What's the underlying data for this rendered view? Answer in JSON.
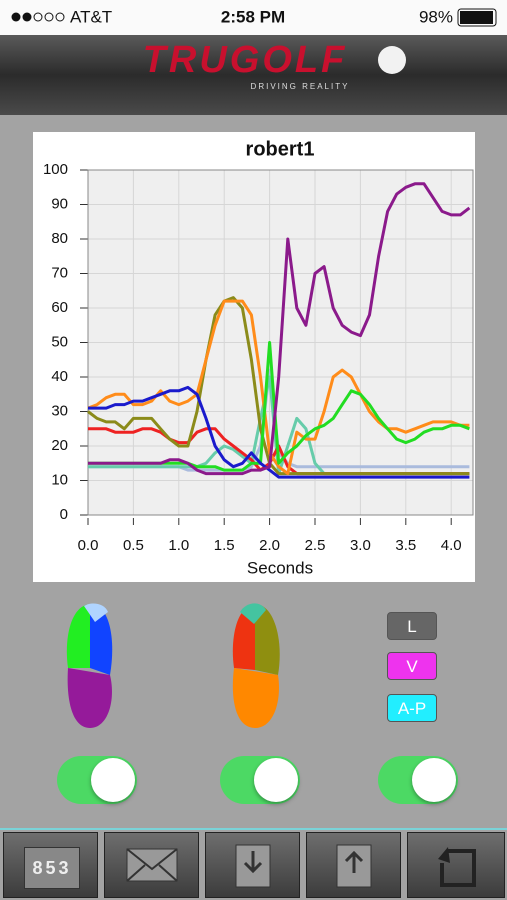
{
  "status_bar": {
    "carrier": "AT&T",
    "time": "2:58 PM",
    "battery": "98%"
  },
  "header": {
    "logo": "TRUGOLF",
    "tagline": "DRIVING REALITY"
  },
  "chart_data": {
    "type": "line",
    "title": "robert1",
    "xlabel": "Seconds",
    "x": [
      0.0,
      0.1,
      0.2,
      0.3,
      0.4,
      0.5,
      0.6,
      0.7,
      0.8,
      0.9,
      1.0,
      1.1,
      1.2,
      1.3,
      1.4,
      1.5,
      1.6,
      1.7,
      1.8,
      1.9,
      2.0,
      2.1,
      2.2,
      2.3,
      2.4,
      2.5,
      2.6,
      2.7,
      2.8,
      2.9,
      3.0,
      3.1,
      3.2,
      3.3,
      3.4,
      3.5,
      3.6,
      3.7,
      3.8,
      3.9,
      4.0,
      4.1,
      4.2
    ],
    "xlim": [
      0,
      4.24
    ],
    "ylim": [
      0,
      100
    ],
    "xticks": [
      {
        "value": 0,
        "label": "0.0"
      },
      0.5,
      {
        "value": 1,
        "label": "1.0"
      },
      1.5,
      {
        "value": 2,
        "label": "2.0"
      },
      2.5,
      {
        "value": 3,
        "label": "3.0"
      },
      3.5,
      {
        "value": 4,
        "label": "4.0"
      }
    ],
    "yticks": [
      0,
      10,
      20,
      30,
      40,
      50,
      60,
      70,
      80,
      90,
      100
    ],
    "grid": true,
    "series": [
      {
        "color": "#aabbdd",
        "values": [
          14,
          14,
          14,
          14,
          14,
          14,
          14,
          14,
          14,
          14,
          14,
          13,
          13,
          13,
          13,
          13,
          13,
          13,
          14,
          20,
          42,
          18,
          15,
          14,
          14,
          14,
          14,
          14,
          14,
          14,
          14,
          14,
          14,
          14,
          14,
          14,
          14,
          14,
          14,
          14,
          14,
          14,
          14
        ]
      },
      {
        "color": "#66ccaa",
        "values": [
          14,
          14,
          14,
          14,
          14,
          14,
          14,
          14,
          14,
          14,
          14,
          14,
          14,
          15,
          18,
          20,
          19,
          17,
          15,
          28,
          40,
          12,
          20,
          28,
          25,
          15,
          12,
          12,
          12,
          12,
          12,
          12,
          12,
          12,
          12,
          12,
          12,
          12,
          12,
          12,
          12,
          12,
          12
        ]
      },
      {
        "color": "#ee2222",
        "values": [
          25,
          25,
          25,
          24,
          24,
          24,
          25,
          25,
          24,
          22,
          21,
          21,
          24,
          25,
          25,
          22,
          20,
          18,
          16,
          13,
          15,
          20,
          14,
          12,
          12,
          12,
          12,
          12,
          12,
          12,
          12,
          12,
          12,
          12,
          12,
          12,
          12,
          12,
          12,
          12,
          12,
          12,
          12
        ]
      },
      {
        "color": "#8b8b1a",
        "values": [
          30,
          28,
          27,
          27,
          25,
          28,
          28,
          28,
          25,
          22,
          20,
          20,
          30,
          45,
          58,
          62,
          63,
          60,
          45,
          25,
          15,
          12,
          12,
          12,
          12,
          12,
          12,
          12,
          12,
          12,
          12,
          12,
          12,
          12,
          12,
          12,
          12,
          12,
          12,
          12,
          12,
          12,
          12
        ]
      },
      {
        "color": "#ff8c1a",
        "values": [
          31,
          32,
          34,
          35,
          35,
          32,
          32,
          33,
          36,
          33,
          32,
          33,
          35,
          45,
          55,
          62,
          62,
          62,
          58,
          40,
          18,
          14,
          12,
          24,
          22,
          22,
          30,
          40,
          42,
          40,
          35,
          30,
          27,
          25,
          25,
          24,
          25,
          26,
          27,
          27,
          27,
          26,
          26
        ]
      },
      {
        "color": "#22dd22",
        "values": [
          15,
          15,
          15,
          15,
          15,
          15,
          15,
          15,
          15,
          15,
          15,
          15,
          14,
          14,
          14,
          13,
          13,
          13,
          15,
          15,
          50,
          15,
          18,
          20,
          23,
          25,
          26,
          28,
          32,
          36,
          35,
          32,
          28,
          25,
          22,
          21,
          22,
          24,
          25,
          25,
          26,
          26,
          25
        ]
      },
      {
        "color": "#1a1acc",
        "values": [
          31,
          31,
          31,
          32,
          32,
          33,
          33,
          34,
          35,
          36,
          36,
          37,
          35,
          28,
          20,
          16,
          14,
          15,
          18,
          15,
          13,
          11,
          11,
          11,
          11,
          11,
          11,
          11,
          11,
          11,
          11,
          11,
          11,
          11,
          11,
          11,
          11,
          11,
          11,
          11,
          11,
          11,
          11
        ]
      },
      {
        "color": "#8b1a8b",
        "values": [
          15,
          15,
          15,
          15,
          15,
          15,
          15,
          15,
          15,
          16,
          16,
          15,
          13,
          12,
          12,
          12,
          12,
          12,
          13,
          13,
          14,
          40,
          80,
          60,
          55,
          70,
          72,
          60,
          55,
          53,
          52,
          58,
          75,
          88,
          93,
          95,
          96,
          96,
          92,
          88,
          87,
          87,
          89
        ]
      }
    ]
  },
  "legend_buttons": [
    "L",
    "V",
    "A-P"
  ],
  "toolbar": {
    "counter": "853"
  }
}
